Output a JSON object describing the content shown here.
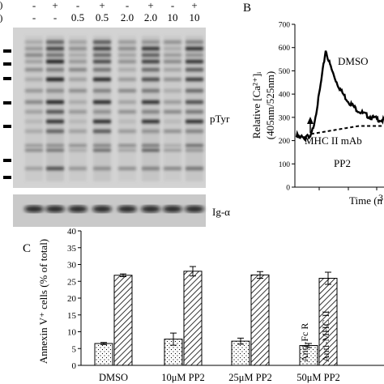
{
  "panelA": {
    "header_row1_left": "l)",
    "header_row2_left": "l)",
    "lanes_row1": [
      "-",
      "+",
      "-",
      "+",
      "-",
      "+",
      "-",
      "+"
    ],
    "lanes_row2": [
      "-",
      "-",
      "0.5",
      "0.5",
      "2.0",
      "2.0",
      "10",
      "10"
    ],
    "label_ptyr": "pTyr",
    "label_iga": "Ig-α"
  },
  "panelB": {
    "letter": "B",
    "ylabel_line1": "Relative [Ca²⁺]ᵢ",
    "ylabel_line2": "(405nm/525nm)",
    "yticks": [
      "0",
      "100",
      "200",
      "300",
      "400",
      "500",
      "600",
      "700"
    ],
    "ylim": [
      0,
      700
    ],
    "xlabel": "Time (n",
    "xtick_partial": "3",
    "trace_dmso": "DMSO",
    "trace_pp2": "PP2",
    "arrow_label": "MHC II mAb"
  },
  "panelC": {
    "letter": "C",
    "ylabel": "Annexin V⁺ cells (% of total)",
    "yticks": [
      "0",
      "5",
      "10",
      "15",
      "20",
      "25",
      "30",
      "35",
      "40"
    ],
    "ylim": [
      0,
      40
    ],
    "bar_label_dotted": "Anti-Fc R",
    "bar_label_hatched": "Anti-MHC II"
  },
  "chart_data": {
    "type": "bar",
    "categories": [
      "DMSO",
      "10μM PP2",
      "25μM PP2",
      "50μM PP2"
    ],
    "ylabel": "Annexin V⁺ cells (% of total)",
    "ylim": [
      0,
      40
    ],
    "series": [
      {
        "name": "Anti-Fc R",
        "values": [
          6.5,
          7.8,
          7.2,
          5.9
        ],
        "errors": [
          0.3,
          1.8,
          0.9,
          0.6
        ]
      },
      {
        "name": "Anti-MHC II",
        "values": [
          26.8,
          28.0,
          26.9,
          25.9
        ],
        "errors": [
          0.4,
          1.4,
          1.0,
          1.8
        ]
      }
    ]
  }
}
